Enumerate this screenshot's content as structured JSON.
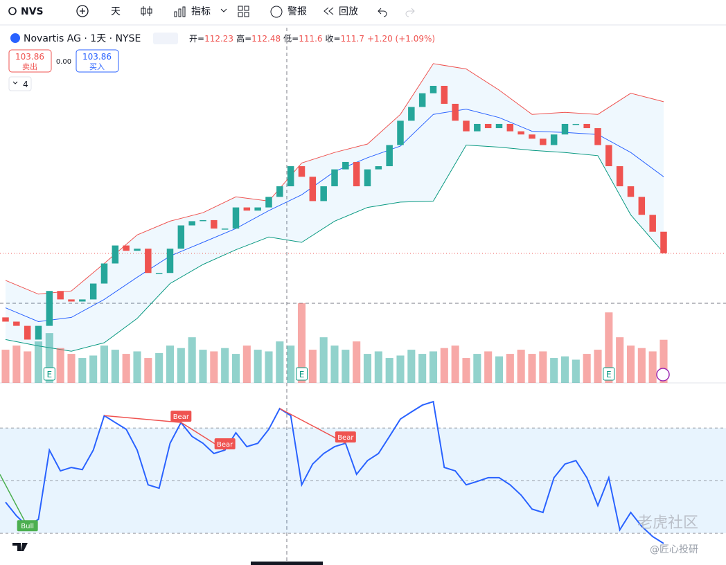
{
  "toolbar": {
    "symbol": "NVS",
    "interval": "天",
    "indicators": "指标",
    "alert": "警报",
    "replay": "回放"
  },
  "legend": {
    "name": "Novartis AG · 1天 · NYSE",
    "ohlc": [
      {
        "label": "开=",
        "value": 112.23
      },
      {
        "label": "高=",
        "value": 112.48
      },
      {
        "label": "低=",
        "value": 111.6
      },
      {
        "label": "收=",
        "value": 111.7
      }
    ],
    "change": "+1.20 (+1.09%)",
    "sell": {
      "price": "103.86",
      "label": "卖出"
    },
    "spread": "0.00",
    "buy": {
      "price": "103.86",
      "label": "买入"
    },
    "collapsed": "4"
  },
  "earnings_marker": "E",
  "chart_data": {
    "type": "candlestick",
    "ylim": [
      91.8,
      125.2
    ],
    "open": [
      97.8,
      97.4,
      97.0,
      95.7,
      97.0,
      100.3,
      99.5,
      99.3,
      99.5,
      101.0,
      102.9,
      104.6,
      104.1,
      104.3,
      102.0,
      102.0,
      104.3,
      106.5,
      106.9,
      107.0,
      106.2,
      106.2,
      108.2,
      107.9,
      108.2,
      109.2,
      110.2,
      112.1,
      111.1,
      108.8,
      110.2,
      111.8,
      112.5,
      110.2,
      111.8,
      112.1,
      114.1,
      116.4,
      117.7,
      119.0,
      119.7,
      118.0,
      116.4,
      115.4,
      116.1,
      115.7,
      116.1,
      115.4,
      115.1,
      114.7,
      114.1,
      115.1,
      116.1,
      116.1,
      115.7,
      114.1,
      112.1,
      110.2,
      109.2,
      107.5,
      105.9
    ],
    "close": [
      97.4,
      97.0,
      95.7,
      97.0,
      100.3,
      99.5,
      99.3,
      99.5,
      101.0,
      102.9,
      104.6,
      104.1,
      104.3,
      102.0,
      102.0,
      104.3,
      106.5,
      106.9,
      107.0,
      106.2,
      106.2,
      108.2,
      107.9,
      108.2,
      109.2,
      110.2,
      112.1,
      111.1,
      108.8,
      110.2,
      111.8,
      112.5,
      110.2,
      111.8,
      112.1,
      114.1,
      116.4,
      117.7,
      119.0,
      119.7,
      118.0,
      116.4,
      115.4,
      116.1,
      115.7,
      116.1,
      115.4,
      115.1,
      114.7,
      114.1,
      115.1,
      116.1,
      116.1,
      115.7,
      114.1,
      112.1,
      110.2,
      109.2,
      107.5,
      105.9,
      103.86
    ],
    "volume": [
      40,
      45,
      38,
      50,
      60,
      42,
      35,
      30,
      33,
      45,
      40,
      35,
      38,
      30,
      36,
      45,
      42,
      55,
      40,
      38,
      42,
      35,
      45,
      40,
      38,
      50,
      45,
      96,
      40,
      55,
      45,
      40,
      50,
      35,
      38,
      30,
      33,
      40,
      35,
      38,
      42,
      45,
      30,
      35,
      38,
      32,
      35,
      40,
      35,
      38,
      30,
      32,
      28,
      35,
      40,
      85,
      55,
      45,
      42,
      38,
      52
    ],
    "bands": {
      "x": [
        0,
        3,
        6,
        9,
        12,
        15,
        18,
        21,
        24,
        27,
        30,
        33,
        36,
        39,
        42,
        45,
        48,
        51,
        54,
        57,
        60
      ],
      "upper": [
        101.3,
        100.0,
        100.3,
        102.9,
        105.6,
        106.9,
        107.7,
        109.2,
        108.8,
        112.4,
        113.4,
        114.2,
        117.0,
        121.8,
        121.3,
        119.3,
        117.0,
        117.2,
        117.0,
        119.0,
        118.2
      ],
      "middle": [
        98.7,
        97.4,
        97.8,
        99.5,
        101.6,
        103.6,
        104.9,
        106.2,
        107.9,
        109.4,
        111.6,
        112.9,
        114.0,
        117.0,
        117.5,
        116.7,
        115.4,
        115.3,
        115.1,
        113.4,
        111.1
      ],
      "lower": [
        95.7,
        95.1,
        94.6,
        95.4,
        97.7,
        101.0,
        102.8,
        104.2,
        105.4,
        104.9,
        106.9,
        108.2,
        108.7,
        108.8,
        114.1,
        113.9,
        113.6,
        113.4,
        113.1,
        107.5,
        103.9
      ]
    },
    "rsi": [
      41.8,
      36.6,
      32.6,
      35.3,
      61.6,
      53.7,
      55,
      54.2,
      61.6,
      74.7,
      72.1,
      69.5,
      61.6,
      48.4,
      47.1,
      64.2,
      72.1,
      66.8,
      64.2,
      60.3,
      61.6,
      68.2,
      62.9,
      64.2,
      69.5,
      77.4,
      74.7,
      48.4,
      56.3,
      60.3,
      62.9,
      64.2,
      52.4,
      57.6,
      60.3,
      66.8,
      73.4,
      76.1,
      78.7,
      80,
      55,
      53.7,
      48.4,
      49.7,
      51.1,
      51.1,
      48.4,
      44.5,
      39.2,
      37.9,
      51.1,
      56.3,
      57.6,
      51.1,
      40.5,
      51.1,
      31.3,
      37.9,
      32.6,
      28.7,
      26.1
    ],
    "rsi_ylim": [
      19.5,
      85.3
    ],
    "rsi_levels": [
      30,
      50,
      70
    ],
    "divergence_labels": [
      "Bear",
      "Bear",
      "Bear",
      "Bull"
    ],
    "up_color": "#26a69a",
    "down_color": "#ef5350"
  },
  "watermark": {
    "main": "老虎社区",
    "sub": "@匠心投研"
  }
}
